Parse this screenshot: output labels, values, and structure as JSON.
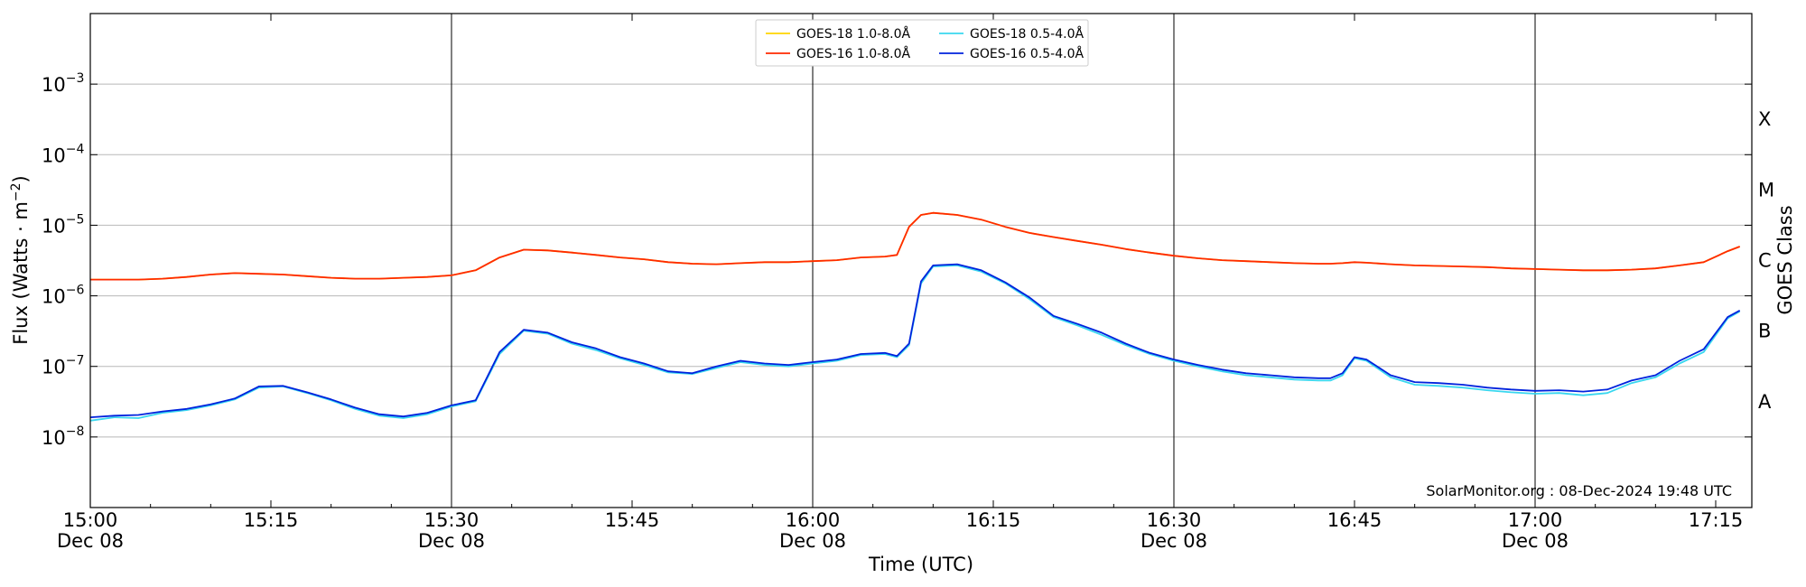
{
  "chart_data": {
    "type": "line",
    "title": "",
    "xlabel": "Time (UTC)",
    "ylabel": "Flux (Watts · m⁻²)",
    "ylabel_right": "GOES Class",
    "yscale": "log",
    "ylim": [
      1e-09,
      0.01
    ],
    "xlim": [
      "15:00",
      "17:18"
    ],
    "grid": "horizontal at decades",
    "legend_position": "top-center",
    "credit": "SolarMonitor.org : 08-Dec-2024 19:48 UTC",
    "x_ticks": [
      {
        "t": "15:00",
        "line1": "15:00",
        "line2": "Dec 08"
      },
      {
        "t": "15:15",
        "line1": "15:15",
        "line2": ""
      },
      {
        "t": "15:30",
        "line1": "15:30",
        "line2": "Dec 08"
      },
      {
        "t": "15:45",
        "line1": "15:45",
        "line2": ""
      },
      {
        "t": "16:00",
        "line1": "16:00",
        "line2": "Dec 08"
      },
      {
        "t": "16:15",
        "line1": "16:15",
        "line2": ""
      },
      {
        "t": "16:30",
        "line1": "16:30",
        "line2": "Dec 08"
      },
      {
        "t": "16:45",
        "line1": "16:45",
        "line2": ""
      },
      {
        "t": "17:00",
        "line1": "17:00",
        "line2": "Dec 08"
      },
      {
        "t": "17:15",
        "line1": "17:15",
        "line2": ""
      }
    ],
    "vertical_lines": [
      "15:30",
      "16:00",
      "16:30",
      "17:00"
    ],
    "y_ticks": [
      {
        "exp": -8,
        "base": "10",
        "sup": "−8"
      },
      {
        "exp": -7,
        "base": "10",
        "sup": "−7"
      },
      {
        "exp": -6,
        "base": "10",
        "sup": "−6"
      },
      {
        "exp": -5,
        "base": "10",
        "sup": "−5"
      },
      {
        "exp": -4,
        "base": "10",
        "sup": "−4"
      },
      {
        "exp": -3,
        "base": "10",
        "sup": "−3"
      }
    ],
    "goes_classes": [
      {
        "label": "A",
        "exp": -7.5
      },
      {
        "label": "B",
        "exp": -6.5
      },
      {
        "label": "C",
        "exp": -5.5
      },
      {
        "label": "M",
        "exp": -4.5
      },
      {
        "label": "X",
        "exp": -3.5
      }
    ],
    "x": [
      "15:00",
      "15:02",
      "15:04",
      "15:06",
      "15:08",
      "15:10",
      "15:12",
      "15:14",
      "15:16",
      "15:18",
      "15:20",
      "15:22",
      "15:24",
      "15:26",
      "15:28",
      "15:30",
      "15:32",
      "15:34",
      "15:36",
      "15:38",
      "15:40",
      "15:42",
      "15:44",
      "15:46",
      "15:48",
      "15:50",
      "15:52",
      "15:54",
      "15:56",
      "15:58",
      "16:00",
      "16:02",
      "16:04",
      "16:06",
      "16:07",
      "16:08",
      "16:09",
      "16:10",
      "16:12",
      "16:14",
      "16:16",
      "16:18",
      "16:20",
      "16:22",
      "16:24",
      "16:26",
      "16:28",
      "16:30",
      "16:32",
      "16:34",
      "16:36",
      "16:38",
      "16:40",
      "16:42",
      "16:43",
      "16:44",
      "16:45",
      "16:46",
      "16:48",
      "16:50",
      "16:52",
      "16:54",
      "16:56",
      "16:58",
      "17:00",
      "17:02",
      "17:04",
      "17:06",
      "17:08",
      "17:10",
      "17:12",
      "17:14",
      "17:16",
      "17:17"
    ],
    "series": [
      {
        "name": "GOES-18 1.0-8.0Å",
        "color": "#ffd400",
        "values": [
          1.7e-06,
          1.7e-06,
          1.7e-06,
          1.75e-06,
          1.85e-06,
          2e-06,
          2.1e-06,
          2.05e-06,
          2e-06,
          1.9e-06,
          1.8e-06,
          1.75e-06,
          1.75e-06,
          1.8e-06,
          1.85e-06,
          1.95e-06,
          2.3e-06,
          3.5e-06,
          4.5e-06,
          4.4e-06,
          4.1e-06,
          3.8e-06,
          3.5e-06,
          3.3e-06,
          3e-06,
          2.85e-06,
          2.8e-06,
          2.9e-06,
          3e-06,
          3e-06,
          3.1e-06,
          3.2e-06,
          3.5e-06,
          3.6e-06,
          3.8e-06,
          9.5e-06,
          1.4e-05,
          1.5e-05,
          1.4e-05,
          1.2e-05,
          9.5e-06,
          7.8e-06,
          6.8e-06,
          6e-06,
          5.3e-06,
          4.6e-06,
          4.1e-06,
          3.7e-06,
          3.4e-06,
          3.2e-06,
          3.1e-06,
          3e-06,
          2.9e-06,
          2.85e-06,
          2.85e-06,
          2.9e-06,
          3e-06,
          2.95e-06,
          2.8e-06,
          2.7e-06,
          2.65e-06,
          2.6e-06,
          2.55e-06,
          2.45e-06,
          2.4e-06,
          2.35e-06,
          2.3e-06,
          2.3e-06,
          2.35e-06,
          2.45e-06,
          2.7e-06,
          3e-06,
          4.3e-06,
          5e-06
        ]
      },
      {
        "name": "GOES-18 0.5-4.0Å",
        "color": "#39d7ef",
        "values": [
          1.7e-08,
          1.9e-08,
          1.85e-08,
          2.2e-08,
          2.4e-08,
          2.8e-08,
          3.4e-08,
          5e-08,
          5.2e-08,
          4.2e-08,
          3.3e-08,
          2.5e-08,
          2e-08,
          1.85e-08,
          2.1e-08,
          2.7e-08,
          3.2e-08,
          1.5e-07,
          3.2e-07,
          2.9e-07,
          2.1e-07,
          1.7e-07,
          1.3e-07,
          1.05e-07,
          8.2e-08,
          7.8e-08,
          9.5e-08,
          1.15e-07,
          1.05e-07,
          1e-07,
          1.1e-07,
          1.2e-07,
          1.45e-07,
          1.5e-07,
          1.35e-07,
          2e-07,
          1.5e-06,
          2.6e-06,
          2.7e-06,
          2.2e-06,
          1.5e-06,
          9e-07,
          5e-07,
          3.8e-07,
          2.8e-07,
          2e-07,
          1.5e-07,
          1.2e-07,
          1e-07,
          8.5e-08,
          7.5e-08,
          7e-08,
          6.5e-08,
          6.3e-08,
          6.3e-08,
          7.5e-08,
          1.3e-07,
          1.2e-07,
          7e-08,
          5.5e-08,
          5.3e-08,
          5e-08,
          4.6e-08,
          4.3e-08,
          4.1e-08,
          4.2e-08,
          3.9e-08,
          4.2e-08,
          5.8e-08,
          7e-08,
          1.1e-07,
          1.6e-07,
          4.8e-07,
          6e-07
        ]
      },
      {
        "name": "GOES-16 1.0-8.0Å",
        "color": "#ff2a00",
        "values": [
          1.7e-06,
          1.7e-06,
          1.7e-06,
          1.75e-06,
          1.85e-06,
          2e-06,
          2.1e-06,
          2.05e-06,
          2e-06,
          1.9e-06,
          1.8e-06,
          1.75e-06,
          1.75e-06,
          1.8e-06,
          1.85e-06,
          1.95e-06,
          2.3e-06,
          3.5e-06,
          4.5e-06,
          4.4e-06,
          4.1e-06,
          3.8e-06,
          3.5e-06,
          3.3e-06,
          3e-06,
          2.85e-06,
          2.8e-06,
          2.9e-06,
          3e-06,
          3e-06,
          3.1e-06,
          3.2e-06,
          3.5e-06,
          3.6e-06,
          3.8e-06,
          9.5e-06,
          1.4e-05,
          1.5e-05,
          1.4e-05,
          1.2e-05,
          9.5e-06,
          7.8e-06,
          6.8e-06,
          6e-06,
          5.3e-06,
          4.6e-06,
          4.1e-06,
          3.7e-06,
          3.4e-06,
          3.2e-06,
          3.1e-06,
          3e-06,
          2.9e-06,
          2.85e-06,
          2.85e-06,
          2.9e-06,
          3e-06,
          2.95e-06,
          2.8e-06,
          2.7e-06,
          2.65e-06,
          2.6e-06,
          2.55e-06,
          2.45e-06,
          2.4e-06,
          2.35e-06,
          2.3e-06,
          2.3e-06,
          2.35e-06,
          2.45e-06,
          2.7e-06,
          3e-06,
          4.3e-06,
          5e-06
        ]
      },
      {
        "name": "GOES-16 0.5-4.0Å",
        "color": "#0022dd",
        "values": [
          1.9e-08,
          2e-08,
          2.05e-08,
          2.3e-08,
          2.5e-08,
          2.9e-08,
          3.5e-08,
          5.2e-08,
          5.3e-08,
          4.3e-08,
          3.4e-08,
          2.6e-08,
          2.1e-08,
          1.95e-08,
          2.2e-08,
          2.8e-08,
          3.3e-08,
          1.6e-07,
          3.3e-07,
          3e-07,
          2.2e-07,
          1.8e-07,
          1.35e-07,
          1.1e-07,
          8.5e-08,
          8e-08,
          1e-07,
          1.2e-07,
          1.1e-07,
          1.05e-07,
          1.15e-07,
          1.25e-07,
          1.5e-07,
          1.55e-07,
          1.4e-07,
          2.1e-07,
          1.6e-06,
          2.7e-06,
          2.8e-06,
          2.3e-06,
          1.55e-06,
          9.5e-07,
          5.2e-07,
          4e-07,
          3e-07,
          2.1e-07,
          1.55e-07,
          1.25e-07,
          1.05e-07,
          9e-08,
          8e-08,
          7.5e-08,
          7e-08,
          6.8e-08,
          6.8e-08,
          8e-08,
          1.35e-07,
          1.25e-07,
          7.5e-08,
          6e-08,
          5.8e-08,
          5.5e-08,
          5e-08,
          4.7e-08,
          4.5e-08,
          4.6e-08,
          4.4e-08,
          4.7e-08,
          6.3e-08,
          7.5e-08,
          1.2e-07,
          1.75e-07,
          5e-07,
          6.2e-07
        ]
      }
    ]
  }
}
